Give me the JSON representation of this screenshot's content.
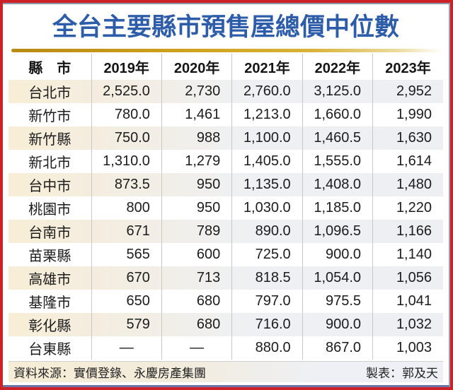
{
  "title": "全台主要縣市預售屋總價中位數",
  "table": {
    "columns": [
      "縣　市",
      "2019年",
      "2020年",
      "2021年",
      "2022年",
      "2023年"
    ],
    "dash_display": "—",
    "rows": [
      {
        "county": "台北市",
        "values": [
          "2,525.0",
          "2,730",
          "2,760.0",
          "3,125.0",
          "2,952"
        ]
      },
      {
        "county": "新竹市",
        "values": [
          "780.0",
          "1,461",
          "1,213.0",
          "1,660.0",
          "1,990"
        ]
      },
      {
        "county": "新竹縣",
        "values": [
          "750.0",
          "988",
          "1,100.0",
          "1,460.5",
          "1,630"
        ]
      },
      {
        "county": "新北市",
        "values": [
          "1,310.0",
          "1,279",
          "1,405.0",
          "1,555.0",
          "1,614"
        ]
      },
      {
        "county": "台中市",
        "values": [
          "873.5",
          "950",
          "1,135.0",
          "1,408.0",
          "1,480"
        ]
      },
      {
        "county": "桃園市",
        "values": [
          "800",
          "950",
          "1,030.0",
          "1,185.0",
          "1,220"
        ]
      },
      {
        "county": "台南市",
        "values": [
          "671",
          "789",
          "890.0",
          "1,096.5",
          "1,166"
        ]
      },
      {
        "county": "苗栗縣",
        "values": [
          "565",
          "600",
          "725.0",
          "900.0",
          "1,140"
        ]
      },
      {
        "county": "高雄市",
        "values": [
          "670",
          "713",
          "818.5",
          "1,054.0",
          "1,056"
        ]
      },
      {
        "county": "基隆市",
        "values": [
          "650",
          "680",
          "797.0",
          "975.5",
          "1,041"
        ]
      },
      {
        "county": "彰化縣",
        "values": [
          "579",
          "680",
          "716.0",
          "900.0",
          "1,032"
        ]
      },
      {
        "county": "台東縣",
        "values": [
          "—",
          "—",
          "880.0",
          "867.0",
          "1,003"
        ]
      }
    ]
  },
  "footer": {
    "source": "資料來源：實價登錄、永慶房產集團",
    "credit": "製表：郭及天"
  },
  "colors": {
    "frame_red": "#ce2127",
    "title_blue": "#2d5ca9",
    "gold_rule": "#d2a51e",
    "shaded_row_cream": "#f8eed7",
    "shaded_row_gray": "#edeff3",
    "column_separator": "#c8c8c8",
    "top_inner_line": "#8d96a8",
    "bottom_inner_line": "#6b74a8"
  },
  "chart_data": {
    "type": "table",
    "title": "全台主要縣市預售屋總價中位數",
    "categories": [
      "台北市",
      "新竹市",
      "新竹縣",
      "新北市",
      "台中市",
      "桃園市",
      "台南市",
      "苗栗縣",
      "高雄市",
      "基隆市",
      "彰化縣",
      "台東縣"
    ],
    "series": [
      {
        "name": "2019年",
        "values": [
          2525.0,
          780.0,
          750.0,
          1310.0,
          873.5,
          800,
          671,
          565,
          670,
          650,
          579,
          null
        ]
      },
      {
        "name": "2020年",
        "values": [
          2730,
          1461,
          988,
          1279,
          950,
          950,
          789,
          600,
          713,
          680,
          680,
          null
        ]
      },
      {
        "name": "2021年",
        "values": [
          2760.0,
          1213.0,
          1100.0,
          1405.0,
          1135.0,
          1030.0,
          890.0,
          725.0,
          818.5,
          797.0,
          716.0,
          880.0
        ]
      },
      {
        "name": "2022年",
        "values": [
          3125.0,
          1660.0,
          1460.5,
          1555.0,
          1408.0,
          1185.0,
          1096.5,
          900.0,
          1054.0,
          975.5,
          900.0,
          867.0
        ]
      },
      {
        "name": "2023年",
        "values": [
          2952,
          1990,
          1630,
          1614,
          1480,
          1220,
          1166,
          1140,
          1056,
          1041,
          1032,
          1003
        ]
      }
    ],
    "missing_value_marker": "—",
    "source_note": "資料來源：實價登錄、永慶房產集團",
    "credit_note": "製表：郭及天"
  }
}
